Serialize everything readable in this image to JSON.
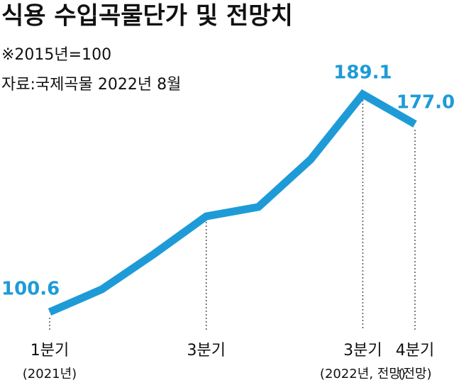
{
  "chart_data": {
    "type": "line",
    "title": "식용 수입곡물단가 및 전망치",
    "notes": [
      "※2015년=100",
      "자료:국제곡물 2022년 8월"
    ],
    "categories": [
      "1분기",
      null,
      null,
      "3분기",
      null,
      null,
      "3분기",
      "4분기"
    ],
    "category_notes": [
      "(2021년)",
      null,
      null,
      null,
      null,
      null,
      "(2022년, 전망)",
      "(전망)"
    ],
    "series": [
      {
        "name": null,
        "color": "#1e9bd7",
        "values": [
          100.6,
          109.8,
          124.2,
          139.5,
          143.3,
          162.6,
          189.1,
          177
        ],
        "value_labels": [
          "100.6",
          null,
          null,
          null,
          null,
          null,
          "189.1",
          "177.0"
        ]
      }
    ]
  }
}
